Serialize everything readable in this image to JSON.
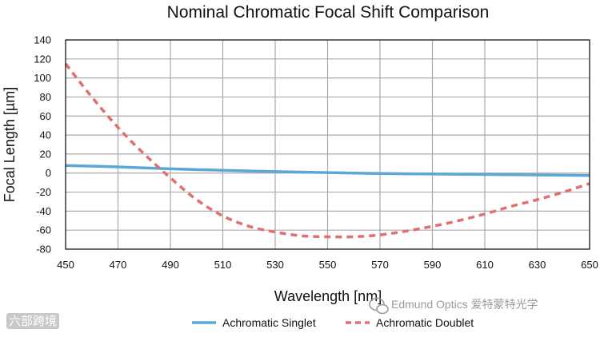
{
  "chart_data": {
    "type": "line",
    "title": "Nominal Chromatic Focal Shift Comparison",
    "xlabel": "Wavelength [nm]",
    "ylabel": "Focal Length [µm]",
    "xlim": [
      450,
      650
    ],
    "ylim": [
      -80,
      140
    ],
    "xticks": [
      450,
      470,
      490,
      510,
      530,
      550,
      570,
      590,
      610,
      630,
      650
    ],
    "yticks": [
      140,
      120,
      100,
      80,
      60,
      40,
      20,
      0,
      -20,
      -40,
      -60,
      -80
    ],
    "grid": true,
    "legend_position": "bottom",
    "series": [
      {
        "name": "Achromatic Singlet",
        "color": "#5aa8d6",
        "style": "solid",
        "x": [
          450,
          470,
          490,
          510,
          530,
          550,
          570,
          590,
          610,
          630,
          650
        ],
        "y": [
          8,
          6.5,
          4.5,
          3,
          1.5,
          0.5,
          -0.5,
          -1,
          -1.5,
          -2,
          -2.5
        ]
      },
      {
        "name": "Achromatic Doublet",
        "color": "#e07070",
        "style": "dashed",
        "x": [
          450,
          460,
          470,
          480,
          490,
          500,
          510,
          520,
          530,
          540,
          550,
          560,
          570,
          580,
          590,
          600,
          610,
          620,
          630,
          640,
          650
        ],
        "y": [
          115,
          80,
          48,
          20,
          -5,
          -28,
          -45,
          -56,
          -62,
          -66,
          -67,
          -67,
          -65,
          -61,
          -56,
          -50,
          -43,
          -35,
          -28,
          -20,
          -11
        ]
      }
    ]
  },
  "watermarks": {
    "left_logo_text": "六部跨境",
    "right_text": "Edmund Optics 爱特蒙特光学"
  },
  "colors": {
    "grid": "#aaaaaa",
    "axis": "#111111",
    "background": "#ffffff"
  }
}
